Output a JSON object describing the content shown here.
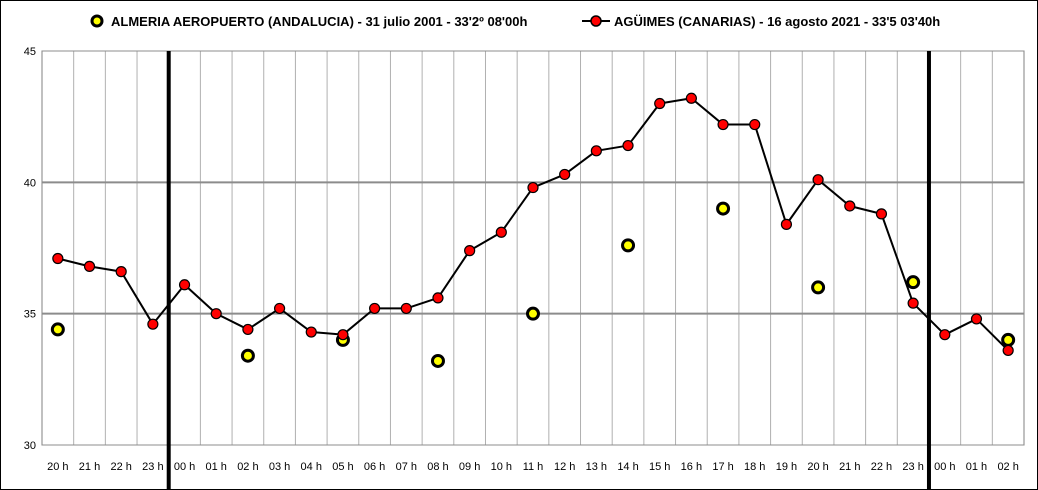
{
  "chart_data": {
    "type": "line",
    "legend": {
      "placement": "top",
      "entries": [
        "ALMERIA AEROPUERTO (ANDALUCIA) - 31 julio 2001 - 33'2º 08'00h",
        "AGÜIMES (CANARIAS) - 16 agosto 2021 - 33'5 03'40h"
      ]
    },
    "categories": [
      "20 h",
      "21 h",
      "22 h",
      "23 h",
      "00 h",
      "01 h",
      "02 h",
      "03 h",
      "04 h",
      "05 h",
      "06 h",
      "07 h",
      "08 h",
      "09 h",
      "10 h",
      "11 h",
      "12 h",
      "13 h",
      "14 h",
      "15 h",
      "16 h",
      "17 h",
      "18 h",
      "19 h",
      "20 h",
      "21 h",
      "22 h",
      "23 h",
      "00 h",
      "01 h",
      "02 h"
    ],
    "ylim": [
      30,
      45
    ],
    "yticks": [
      30,
      35,
      40,
      45
    ],
    "grid": true,
    "day_separators_after_index": [
      3,
      27
    ],
    "series": [
      {
        "name": "ALMERIA AEROPUERTO (ANDALUCIA) - 31 julio 2001 - 33'2º 08'00h",
        "style": "markers",
        "color": "#ffff00",
        "edge_color": "#000000",
        "values": [
          34.4,
          null,
          null,
          null,
          null,
          null,
          33.4,
          null,
          null,
          34.0,
          null,
          null,
          33.2,
          null,
          null,
          35.0,
          null,
          null,
          37.6,
          null,
          null,
          39.0,
          null,
          null,
          36.0,
          null,
          null,
          36.2,
          null,
          null,
          34.0
        ]
      },
      {
        "name": "AGÜIMES (CANARIAS) - 16 agosto 2021 - 33'5 03'40h",
        "style": "line+markers",
        "color": "#ff0000",
        "edge_color": "#000000",
        "values": [
          37.1,
          36.8,
          36.6,
          34.6,
          36.1,
          35.0,
          34.4,
          35.2,
          34.3,
          34.2,
          35.2,
          35.2,
          35.6,
          37.4,
          38.1,
          39.8,
          40.3,
          41.2,
          41.4,
          43.0,
          43.2,
          42.2,
          42.2,
          38.4,
          40.1,
          39.1,
          38.8,
          35.4,
          34.2,
          34.8,
          33.6
        ]
      }
    ]
  }
}
